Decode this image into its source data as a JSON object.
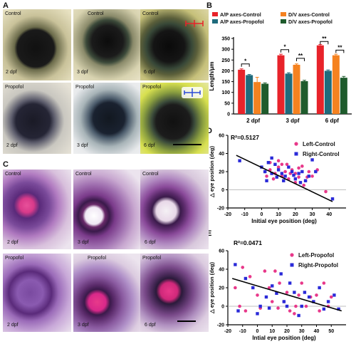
{
  "panels": {
    "a": "A",
    "b": "B",
    "c": "C",
    "d": "D",
    "e": "E"
  },
  "panel_a": {
    "photos": [
      {
        "top": "Control",
        "bottom": "2 dpf"
      },
      {
        "top": "Control",
        "bottom": "3 dpf"
      },
      {
        "top": "Control",
        "bottom": "6 dpf"
      },
      {
        "top": "Propofol",
        "bottom": "2 dpf"
      },
      {
        "top": "Propofol",
        "bottom": "3 dpf"
      },
      {
        "top": "Propofol",
        "bottom": "6 dpf"
      }
    ]
  },
  "panel_c": {
    "photos": [
      {
        "top": "Control",
        "bottom": "2 dpf"
      },
      {
        "top": "Control",
        "bottom": "3 dpf"
      },
      {
        "top": "Control",
        "bottom": "6 dpf"
      },
      {
        "top": "Propofol",
        "bottom": "2 dpf"
      },
      {
        "top": "Propofol",
        "bottom": "3 dpf"
      },
      {
        "top": "Propofol",
        "bottom": "6 dpf"
      }
    ]
  },
  "colors": {
    "ap_control": "#e8232a",
    "ap_propofol": "#1f6b7c",
    "dv_control": "#f58220",
    "dv_propofol": "#1e5b2c",
    "left_control": "#e8388a",
    "right_control": "#2a2ad8",
    "fit": "#000000"
  },
  "chart_data": [
    {
      "type": "bar",
      "ylabel": "Length/μm",
      "categories": [
        "2 dpf",
        "3 dpf",
        "6 dpf"
      ],
      "ylim": [
        0,
        350
      ],
      "yticks": [
        0,
        50,
        100,
        150,
        200,
        250,
        300,
        350
      ],
      "series": [
        {
          "name": "A/P axes-Control",
          "values": [
            205,
            272,
            318
          ],
          "err": [
            4,
            5,
            4
          ]
        },
        {
          "name": "A/P axes-Propofol",
          "values": [
            180,
            187,
            200
          ],
          "err": [
            3,
            4,
            4
          ]
        },
        {
          "name": "D/V axes-Control",
          "values": [
            148,
            228,
            272
          ],
          "err": [
            22,
            4,
            5
          ]
        },
        {
          "name": "D/V axes-Propofol",
          "values": [
            140,
            152,
            168
          ],
          "err": [
            4,
            4,
            6
          ]
        }
      ],
      "annotations": [
        "*",
        "*",
        "**",
        "**",
        "**"
      ]
    },
    {
      "type": "scatter",
      "xlabel": "Initial eye position (deg)",
      "ylabel": "△ eye position (deg)",
      "annotation": "R²=0.5127",
      "xlim": [
        -20,
        50
      ],
      "ylim": [
        -20,
        60
      ],
      "xticks": [
        -20,
        -10,
        0,
        10,
        20,
        30,
        40
      ],
      "yticks": [
        -20,
        0,
        20,
        40,
        60
      ],
      "fit": {
        "x": [
          -15,
          42
        ],
        "y": [
          38,
          -13
        ]
      },
      "series": [
        {
          "name": "Left-Control",
          "points": [
            [
              2,
              20
            ],
            [
              5,
              22
            ],
            [
              8,
              18
            ],
            [
              10,
              25
            ],
            [
              12,
              15
            ],
            [
              14,
              20
            ],
            [
              16,
              12
            ],
            [
              18,
              22
            ],
            [
              20,
              18
            ],
            [
              22,
              14
            ],
            [
              24,
              26
            ],
            [
              26,
              10
            ],
            [
              28,
              20
            ],
            [
              30,
              15
            ],
            [
              5,
              30
            ],
            [
              10,
              32
            ],
            [
              15,
              28
            ],
            [
              20,
              8
            ],
            [
              25,
              5
            ],
            [
              3,
              15
            ],
            [
              7,
              12
            ],
            [
              12,
              28
            ],
            [
              17,
              18
            ],
            [
              22,
              24
            ],
            [
              27,
              14
            ],
            [
              33,
              22
            ],
            [
              38,
              -2
            ]
          ]
        },
        {
          "name": "Right-Control",
          "points": [
            [
              -13,
              32
            ],
            [
              0,
              25
            ],
            [
              2,
              20
            ],
            [
              4,
              30
            ],
            [
              6,
              35
            ],
            [
              8,
              28
            ],
            [
              10,
              22
            ],
            [
              12,
              18
            ],
            [
              14,
              15
            ],
            [
              16,
              25
            ],
            [
              18,
              20
            ],
            [
              20,
              12
            ],
            [
              22,
              18
            ],
            [
              24,
              20
            ],
            [
              26,
              10
            ],
            [
              28,
              15
            ],
            [
              30,
              33
            ],
            [
              32,
              20
            ],
            [
              42,
              -10
            ],
            [
              9,
              14
            ],
            [
              13,
              10
            ],
            [
              19,
              16
            ],
            [
              23,
              8
            ],
            [
              6,
              18
            ],
            [
              3,
              10
            ]
          ]
        }
      ]
    },
    {
      "type": "scatter",
      "xlabel": "Intial eye position (deg)",
      "ylabel": "△ eye position (deg)",
      "annotation": "R²=0.0471",
      "xlim": [
        -20,
        60
      ],
      "ylim": [
        -20,
        60
      ],
      "xticks": [
        -20,
        -10,
        0,
        10,
        20,
        30,
        40,
        50
      ],
      "yticks": [
        -20,
        0,
        20,
        40,
        60
      ],
      "fit": {
        "x": [
          -17,
          57
        ],
        "y": [
          30,
          -5
        ]
      },
      "series": [
        {
          "name": "Left-Propofol",
          "points": [
            [
              -10,
              42
            ],
            [
              -5,
              32
            ],
            [
              0,
              12
            ],
            [
              5,
              38
            ],
            [
              8,
              20
            ],
            [
              10,
              5
            ],
            [
              12,
              38
            ],
            [
              15,
              25
            ],
            [
              18,
              5
            ],
            [
              20,
              15
            ],
            [
              22,
              -5
            ],
            [
              25,
              -8
            ],
            [
              28,
              12
            ],
            [
              30,
              25
            ],
            [
              33,
              0
            ],
            [
              36,
              10
            ],
            [
              40,
              12
            ],
            [
              42,
              -5
            ],
            [
              45,
              25
            ],
            [
              48,
              0
            ],
            [
              50,
              10
            ],
            [
              -12,
              0
            ],
            [
              -8,
              -5
            ],
            [
              2,
              -2
            ],
            [
              14,
              -2
            ],
            [
              26,
              0
            ],
            [
              -15,
              20
            ]
          ]
        },
        {
          "name": "Right-Propofol",
          "points": [
            [
              -15,
              45
            ],
            [
              -13,
              -5
            ],
            [
              -8,
              30
            ],
            [
              -3,
              20
            ],
            [
              2,
              0
            ],
            [
              6,
              10
            ],
            [
              10,
              22
            ],
            [
              13,
              14
            ],
            [
              16,
              35
            ],
            [
              18,
              5
            ],
            [
              22,
              25
            ],
            [
              25,
              15
            ],
            [
              28,
              -10
            ],
            [
              32,
              15
            ],
            [
              35,
              10
            ],
            [
              38,
              5
            ],
            [
              42,
              20
            ],
            [
              45,
              -3
            ],
            [
              48,
              5
            ],
            [
              52,
              12
            ],
            [
              55,
              -3
            ],
            [
              0,
              -8
            ],
            [
              8,
              -2
            ],
            [
              20,
              0
            ],
            [
              30,
              0
            ]
          ]
        }
      ]
    }
  ]
}
